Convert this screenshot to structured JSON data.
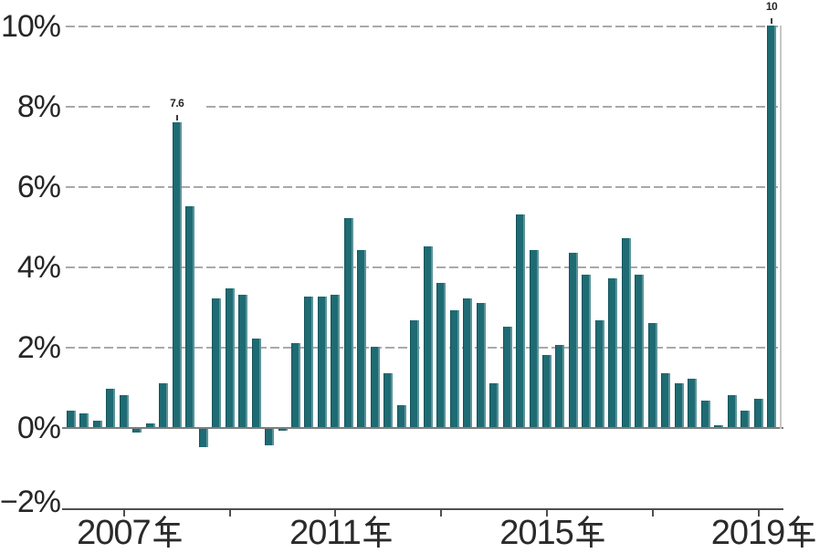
{
  "chart_data": {
    "type": "bar",
    "title": "",
    "unit": "%",
    "description": "Quarterly percentage bar chart, 2006Q1-2019Q2",
    "bar_color": "#1e6b73",
    "grid": "horizontal dashed gridlines at every 2%, solid line at 0%, bottom axis at -2%",
    "legend_position": "none",
    "ylim": [
      -2,
      10
    ],
    "y_ticks": [
      {
        "value": 10,
        "label": "10%"
      },
      {
        "value": 8,
        "label": "8%"
      },
      {
        "value": 6,
        "label": "6%"
      },
      {
        "value": 4,
        "label": "4%"
      },
      {
        "value": 2,
        "label": "2%"
      },
      {
        "value": 0,
        "label": "0%"
      },
      {
        "value": -2,
        "label": "−2%"
      }
    ],
    "x_tick_years": [
      2007,
      2009,
      2011,
      2013,
      2015,
      2017,
      2019
    ],
    "x_labels": [
      {
        "year": 2007,
        "text": "2007年"
      },
      {
        "year": 2011,
        "text": "2011年"
      },
      {
        "year": 2015,
        "text": "2015年"
      },
      {
        "year": 2019,
        "text": "2019年"
      }
    ],
    "periods": [
      "2006Q1",
      "2006Q2",
      "2006Q3",
      "2006Q4",
      "2007Q1",
      "2007Q2",
      "2007Q3",
      "2007Q4",
      "2008Q1",
      "2008Q2",
      "2008Q3",
      "2008Q4",
      "2009Q1",
      "2009Q2",
      "2009Q3",
      "2009Q4",
      "2010Q1",
      "2010Q2",
      "2010Q3",
      "2010Q4",
      "2011Q1",
      "2011Q2",
      "2011Q3",
      "2011Q4",
      "2012Q1",
      "2012Q2",
      "2012Q3",
      "2012Q4",
      "2013Q1",
      "2013Q2",
      "2013Q3",
      "2013Q4",
      "2014Q1",
      "2014Q2",
      "2014Q3",
      "2014Q4",
      "2015Q1",
      "2015Q2",
      "2015Q3",
      "2015Q4",
      "2016Q1",
      "2016Q2",
      "2016Q3",
      "2016Q4",
      "2017Q1",
      "2017Q2",
      "2017Q3",
      "2017Q4",
      "2018Q1",
      "2018Q2",
      "2018Q3",
      "2018Q4",
      "2019Q1",
      "2019Q2"
    ],
    "values": [
      0.4,
      0.35,
      0.15,
      0.95,
      0.8,
      -0.1,
      0.1,
      1.1,
      7.6,
      5.5,
      -0.45,
      3.2,
      3.45,
      3.3,
      2.2,
      -0.4,
      -0.05,
      2.1,
      3.25,
      3.25,
      3.3,
      5.2,
      4.4,
      2.0,
      1.35,
      0.55,
      2.65,
      4.5,
      3.6,
      2.9,
      3.2,
      3.1,
      1.1,
      2.5,
      5.3,
      4.4,
      1.8,
      2.05,
      4.35,
      3.8,
      2.65,
      3.7,
      4.7,
      3.8,
      2.6,
      1.35,
      1.1,
      1.2,
      0.65,
      0.05,
      0.8,
      0.4,
      0.7,
      10.0
    ],
    "bar_value_labels": {
      "8": "7.6",
      "53": "10"
    }
  }
}
